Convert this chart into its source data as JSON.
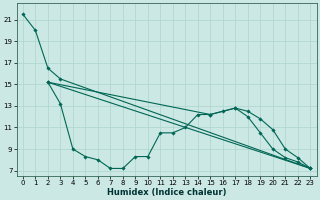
{
  "xlabel": "Humidex (Indice chaleur)",
  "ylabel": "",
  "bg_color": "#cce8e4",
  "grid_color": "#b0d8d0",
  "line_color": "#006655",
  "xlim": [
    -0.5,
    23.5
  ],
  "ylim": [
    6.5,
    22.5
  ],
  "xticks": [
    0,
    1,
    2,
    3,
    4,
    5,
    6,
    7,
    8,
    9,
    10,
    11,
    12,
    13,
    14,
    15,
    16,
    17,
    18,
    19,
    20,
    21,
    22,
    23
  ],
  "yticks": [
    7,
    9,
    11,
    13,
    15,
    17,
    19,
    21
  ],
  "line1_x": [
    0,
    1,
    2,
    3,
    23
  ],
  "line1_y": [
    21.5,
    20.0,
    16.5,
    15.5,
    7.2
  ],
  "line2_x": [
    2,
    3,
    4,
    5,
    6,
    7,
    8,
    9,
    10,
    11,
    12,
    13,
    14,
    15,
    16,
    17,
    18,
    19,
    20,
    21,
    22,
    23
  ],
  "line2_y": [
    15.2,
    13.2,
    9.0,
    8.3,
    8.0,
    7.2,
    7.2,
    8.3,
    8.3,
    10.5,
    10.5,
    11.0,
    12.2,
    12.2,
    12.5,
    12.8,
    12.0,
    10.5,
    9.0,
    8.2,
    7.8,
    7.2
  ],
  "line3_x": [
    2,
    23
  ],
  "line3_y": [
    15.2,
    7.2
  ],
  "line4_x": [
    2,
    15,
    17,
    18,
    19,
    20,
    21,
    22,
    23
  ],
  "line4_y": [
    15.2,
    12.2,
    12.8,
    12.5,
    11.8,
    10.8,
    9.0,
    8.2,
    7.2
  ],
  "xlabel_fontsize": 6.0,
  "tick_fontsize": 5.0,
  "lw": 0.8,
  "ms": 1.8
}
